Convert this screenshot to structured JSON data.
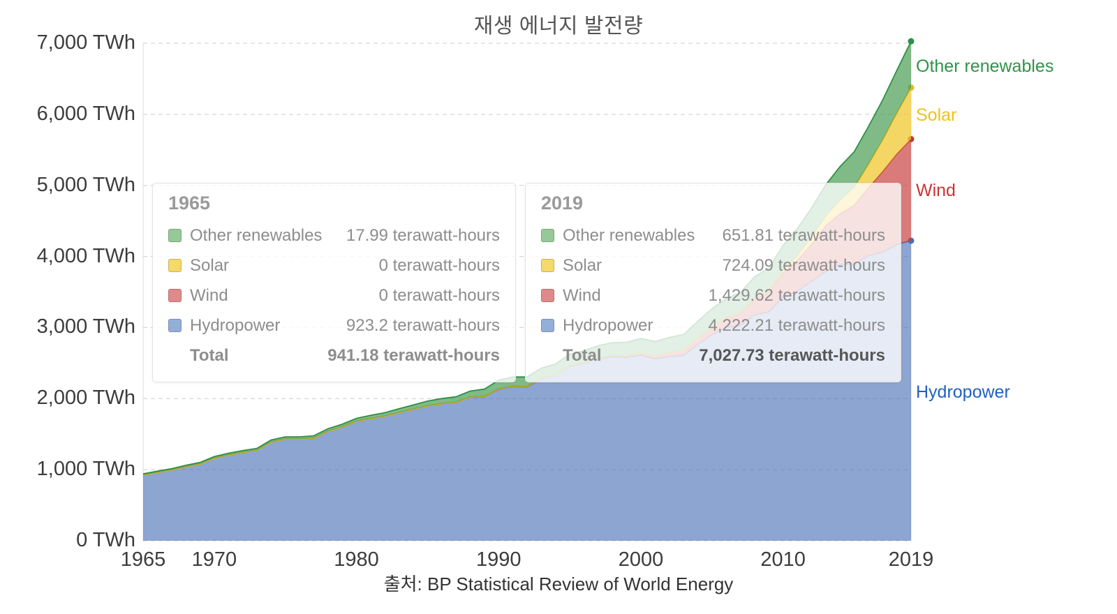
{
  "chart": {
    "title": "재생 에너지 발전량",
    "source": "출처: BP Statistical Review of World Energy",
    "y_unit": "TWh"
  },
  "series_labels": {
    "other": {
      "label": "Other renewables",
      "color": "#2e9447"
    },
    "solar": {
      "label": "Solar",
      "color": "#eec319"
    },
    "wind": {
      "label": "Wind",
      "color": "#cd3434"
    },
    "hydro": {
      "label": "Hydropower",
      "color": "#2061c4"
    }
  },
  "tooltips": [
    {
      "year": "1965",
      "rows": [
        {
          "label": "Other renewables",
          "value": "17.99 terawatt-hours",
          "swatch": "#97c897"
        },
        {
          "label": "Solar",
          "value": "0 terawatt-hours",
          "swatch": "#f5d969"
        },
        {
          "label": "Wind",
          "value": "0 terawatt-hours",
          "swatch": "#df8a8a"
        },
        {
          "label": "Hydropower",
          "value": "923.2 terawatt-hours",
          "swatch": "#94afd7"
        }
      ],
      "total_label": "Total",
      "total_value": "941.18 terawatt-hours"
    },
    {
      "year": "2019",
      "rows": [
        {
          "label": "Other renewables",
          "value": "651.81 terawatt-hours",
          "swatch": "#97c897"
        },
        {
          "label": "Solar",
          "value": "724.09 terawatt-hours",
          "swatch": "#f5d969"
        },
        {
          "label": "Wind",
          "value": "1,429.62 terawatt-hours",
          "swatch": "#df8a8a"
        },
        {
          "label": "Hydropower",
          "value": "4,222.21 terawatt-hours",
          "swatch": "#94afd7"
        }
      ],
      "total_label": "Total",
      "total_value": "7,027.73 terawatt-hours"
    }
  ],
  "chart_data": {
    "type": "area",
    "stacked": true,
    "title": "재생 에너지 발전량",
    "xlabel": "",
    "ylabel": "TWh",
    "ylim": [
      0,
      7000
    ],
    "grid": "horizontal-dashed",
    "legend_position": "right",
    "x": [
      1965,
      1966,
      1967,
      1968,
      1969,
      1970,
      1971,
      1972,
      1973,
      1974,
      1975,
      1976,
      1977,
      1978,
      1979,
      1980,
      1981,
      1982,
      1983,
      1984,
      1985,
      1986,
      1987,
      1988,
      1989,
      1990,
      1991,
      1992,
      1993,
      1994,
      1995,
      1996,
      1997,
      1998,
      1999,
      2000,
      2001,
      2002,
      2003,
      2004,
      2005,
      2006,
      2007,
      2008,
      2009,
      2010,
      2011,
      2012,
      2013,
      2014,
      2015,
      2016,
      2017,
      2018,
      2019
    ],
    "series": [
      {
        "name": "Hydropower",
        "fill": "rgba(70,110,180,0.62)",
        "stroke": "#4a6fae",
        "values": [
          923.2,
          960,
          994,
          1040,
          1080,
          1160,
          1206,
          1242,
          1272,
          1388,
          1430,
          1428,
          1442,
          1540,
          1600,
          1680,
          1718,
          1752,
          1803,
          1850,
          1897,
          1928,
          1945,
          2020,
          2030,
          2131,
          2170,
          2163,
          2280,
          2330,
          2458,
          2500,
          2560,
          2590,
          2582,
          2613,
          2560,
          2590,
          2610,
          2760,
          2900,
          3000,
          3030,
          3180,
          3220,
          3430,
          3510,
          3650,
          3790,
          3890,
          3890,
          4010,
          4060,
          4170,
          4222.21
        ]
      },
      {
        "name": "Wind",
        "fill": "rgba(200,60,60,0.68)",
        "stroke": "#c03a3a",
        "values": [
          0,
          0,
          0,
          0,
          0,
          0,
          0,
          0,
          0,
          0,
          0,
          0,
          0,
          0,
          0,
          0,
          0,
          0,
          0,
          0,
          1,
          1,
          2,
          2,
          3,
          4,
          4,
          5,
          6,
          7,
          8,
          9,
          12,
          16,
          21,
          31,
          38,
          52,
          63,
          85,
          104,
          133,
          171,
          221,
          276,
          342,
          437,
          523,
          646,
          712,
          831,
          958,
          1136,
          1273,
          1429.62
        ]
      },
      {
        "name": "Solar",
        "fill": "rgba(240,200,50,0.75)",
        "stroke": "#e3b922",
        "values": [
          0,
          0,
          0,
          0,
          0,
          0,
          0,
          0,
          0,
          0,
          0,
          0,
          0,
          0,
          0,
          0,
          0,
          0,
          0,
          0,
          0,
          0,
          0,
          0,
          0,
          0,
          0,
          0,
          0,
          0,
          0,
          0,
          0,
          0,
          0,
          1,
          1,
          2,
          2,
          3,
          4,
          5,
          7,
          12,
          20,
          32,
          63,
          97,
          132,
          190,
          250,
          328,
          445,
          574,
          724.09
        ]
      },
      {
        "name": "Other renewables",
        "fill": "rgba(60,150,70,0.65)",
        "stroke": "#2f8f46",
        "values": [
          17.99,
          19,
          20,
          21,
          22,
          24,
          25,
          27,
          28,
          30,
          32,
          33,
          35,
          37,
          40,
          42,
          46,
          50,
          55,
          61,
          67,
          72,
          78,
          84,
          100,
          125,
          130,
          136,
          143,
          150,
          158,
          165,
          172,
          180,
          190,
          200,
          205,
          215,
          225,
          240,
          255,
          270,
          285,
          300,
          320,
          350,
          380,
          410,
          440,
          470,
          500,
          530,
          560,
          600,
          651.81
        ]
      }
    ],
    "y_ticks": [
      {
        "value": 0,
        "label": "0 TWh"
      },
      {
        "value": 1000,
        "label": "1,000 TWh"
      },
      {
        "value": 2000,
        "label": "2,000 TWh"
      },
      {
        "value": 3000,
        "label": "3,000 TWh"
      },
      {
        "value": 4000,
        "label": "4,000 TWh"
      },
      {
        "value": 5000,
        "label": "5,000 TWh"
      },
      {
        "value": 6000,
        "label": "6,000 TWh"
      },
      {
        "value": 7000,
        "label": "7,000 TWh"
      }
    ],
    "x_ticks": [
      {
        "value": 1965,
        "label": "1965"
      },
      {
        "value": 1970,
        "label": "1970"
      },
      {
        "value": 1980,
        "label": "1980"
      },
      {
        "value": 1990,
        "label": "1990"
      },
      {
        "value": 2000,
        "label": "2000"
      },
      {
        "value": 2010,
        "label": "2010"
      },
      {
        "value": 2019,
        "label": "2019"
      }
    ]
  }
}
